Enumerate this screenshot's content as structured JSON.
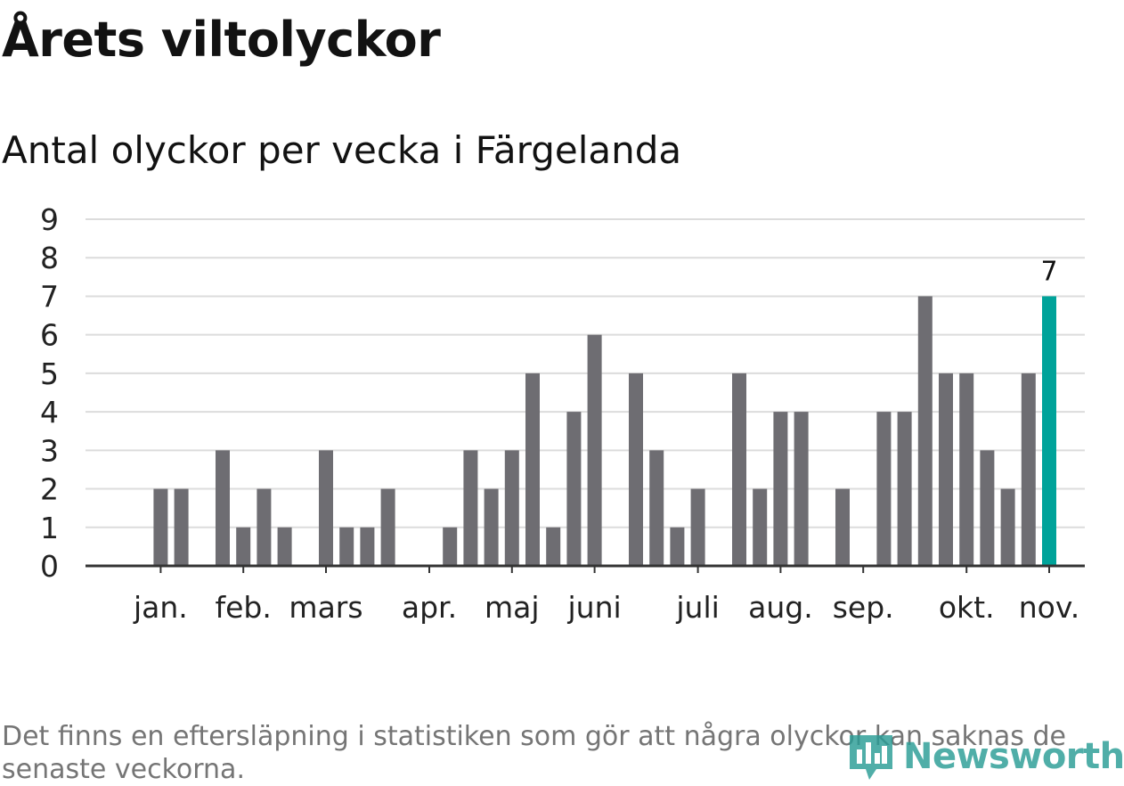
{
  "header": {
    "title": "Årets viltolyckor",
    "subtitle": "Antal olyckor per vecka i Färgelanda"
  },
  "footnote": "Det finns en eftersläpning i statistiken som gör att några olyckor kan saknas de senaste veckorna.",
  "brand": {
    "name": "Newsworthy"
  },
  "colors": {
    "bar": "#6e6d72",
    "highlight": "#00a39a",
    "grid": "#dcdcdc",
    "axis": "#333333",
    "text": "#222222"
  },
  "chart_data": {
    "type": "bar",
    "title": "Antal olyckor per vecka i Färgelanda",
    "xlabel": "",
    "ylabel": "",
    "ylim": [
      0,
      9
    ],
    "yticks": [
      "0",
      "1",
      "2",
      "3",
      "4",
      "5",
      "6",
      "7",
      "8",
      "9"
    ],
    "x_tick_labels": [
      {
        "label": "jan.",
        "week": 3
      },
      {
        "label": "feb.",
        "week": 7
      },
      {
        "label": "mars",
        "week": 11
      },
      {
        "label": "apr.",
        "week": 16
      },
      {
        "label": "maj",
        "week": 20
      },
      {
        "label": "juni",
        "week": 24
      },
      {
        "label": "juli",
        "week": 29
      },
      {
        "label": "aug.",
        "week": 33
      },
      {
        "label": "sep.",
        "week": 37
      },
      {
        "label": "okt.",
        "week": 42
      },
      {
        "label": "nov.",
        "week": 46
      }
    ],
    "weeks": [
      1,
      2,
      3,
      4,
      5,
      6,
      7,
      8,
      9,
      10,
      11,
      12,
      13,
      14,
      15,
      16,
      17,
      18,
      19,
      20,
      21,
      22,
      23,
      24,
      25,
      26,
      27,
      28,
      29,
      30,
      31,
      32,
      33,
      34,
      35,
      36,
      37,
      38,
      39,
      40,
      41,
      42,
      43,
      44,
      45,
      46
    ],
    "values": [
      0,
      0,
      2,
      2,
      0,
      3,
      1,
      2,
      1,
      0,
      3,
      1,
      1,
      2,
      0,
      0,
      1,
      3,
      2,
      3,
      5,
      1,
      4,
      6,
      0,
      5,
      3,
      1,
      2,
      0,
      5,
      2,
      4,
      4,
      0,
      2,
      0,
      4,
      4,
      7,
      5,
      5,
      3,
      2,
      5,
      7
    ],
    "highlight_index": 45,
    "highlight_label": "7"
  }
}
